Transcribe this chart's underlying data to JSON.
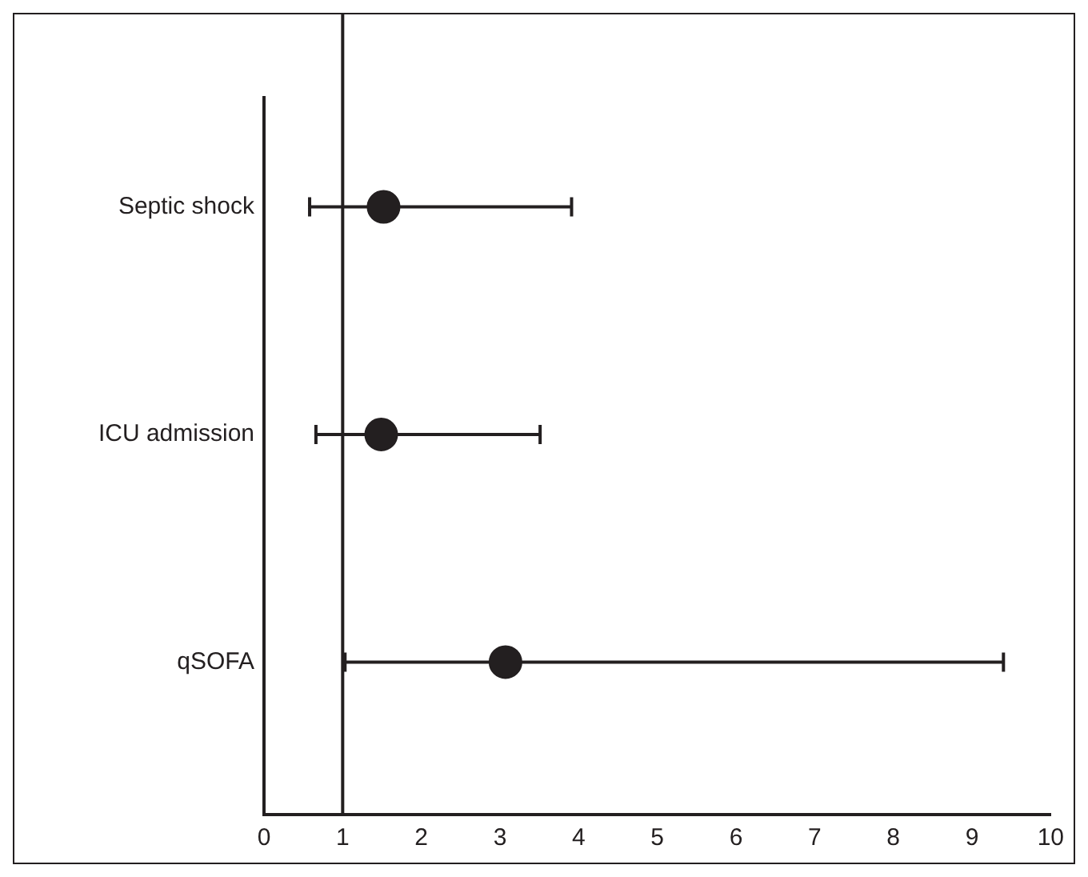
{
  "chart_data": {
    "type": "scatter",
    "orientation": "horizontal",
    "categories": [
      "Septic shock",
      "ICU admission",
      "qSOFA"
    ],
    "values": [
      1.52,
      1.49,
      3.07
    ],
    "errors": [
      [
        0.58,
        3.91
      ],
      [
        0.66,
        3.51
      ],
      [
        1.03,
        9.4
      ]
    ],
    "color": "#231f20",
    "marker": "circle",
    "grid": false,
    "legend": false,
    "xlim": [
      0,
      10
    ],
    "xticks": [
      0,
      1,
      2,
      3,
      4,
      5,
      6,
      7,
      8,
      9,
      10
    ],
    "ref_lines": [
      {
        "axis": "x",
        "value": 1,
        "color": "#231f20"
      }
    ]
  }
}
